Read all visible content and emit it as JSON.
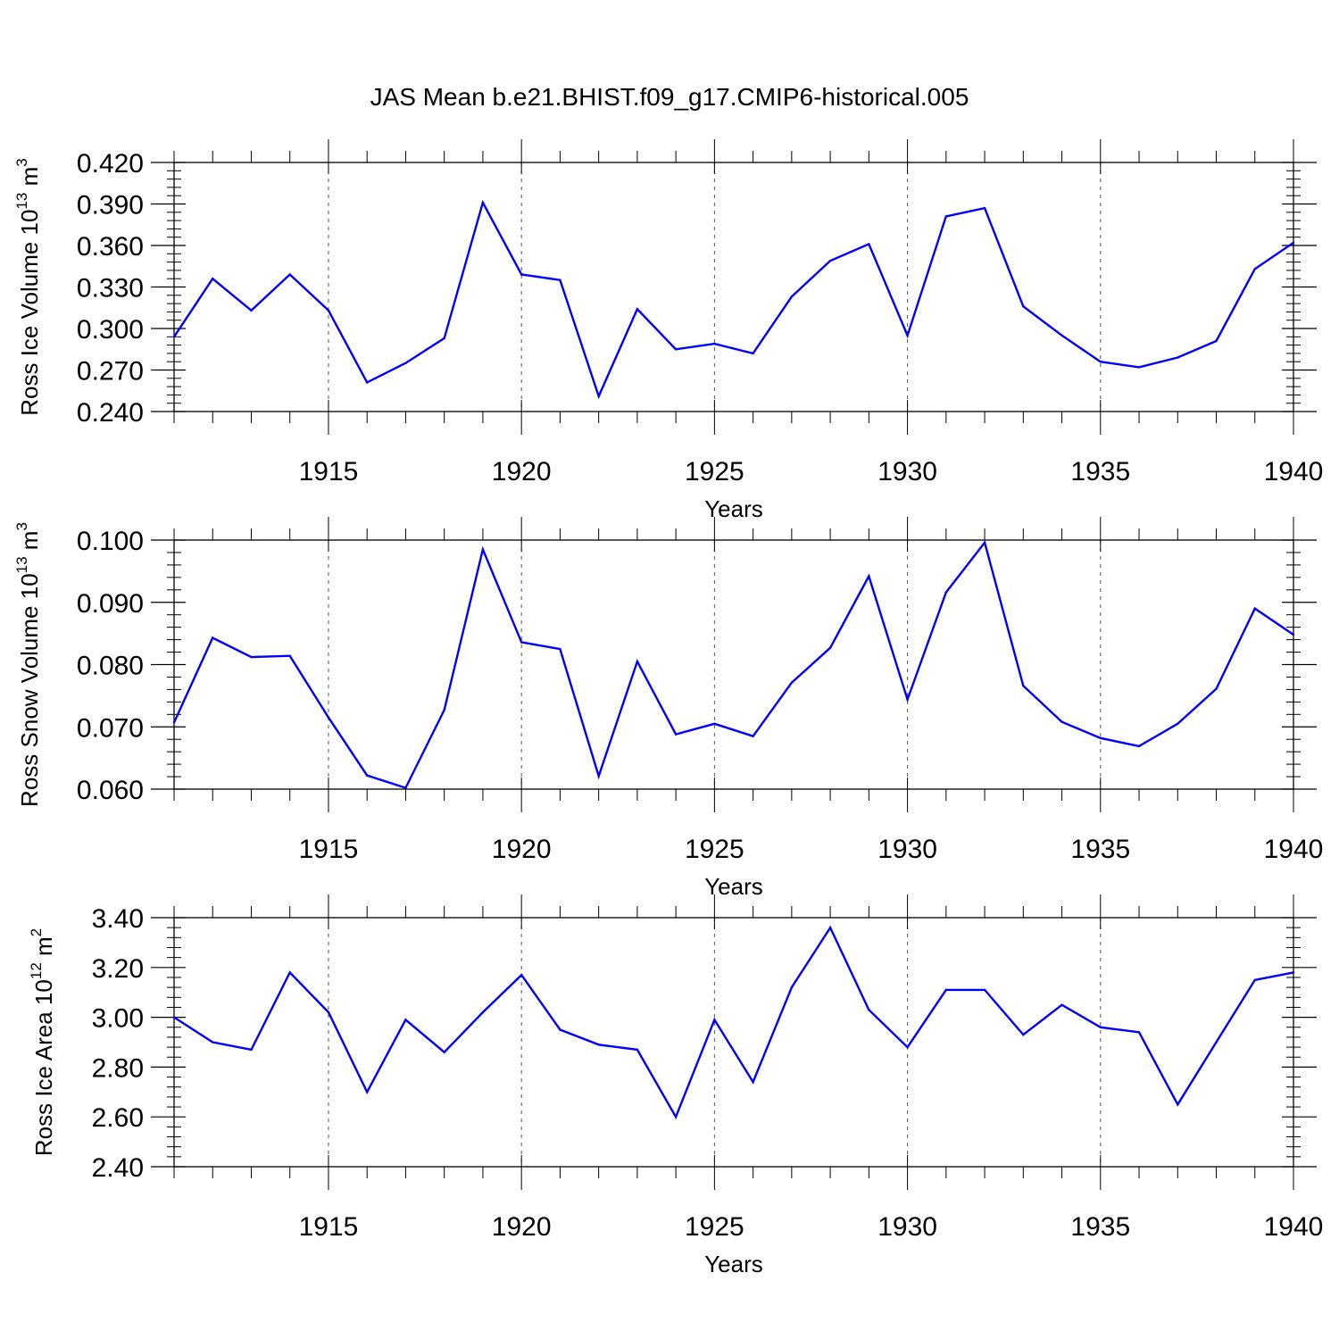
{
  "chart_data": [
    {
      "type": "line",
      "title": "JAS Mean b.e21.BHIST.f09_g17.CMIP6-historical.005",
      "ylabel": {
        "base": "Ross Ice Volume 10",
        "exp": "13",
        "unit": " m",
        "unit_exp": "3"
      },
      "xlabel": "Years",
      "xlim": [
        1911,
        1940
      ],
      "ylim": [
        0.24,
        0.42
      ],
      "yticks": [
        "0.240",
        "0.270",
        "0.300",
        "0.330",
        "0.360",
        "0.390",
        "0.420"
      ],
      "ytick_values": [
        0.24,
        0.27,
        0.3,
        0.33,
        0.36,
        0.39,
        0.42
      ],
      "xticks": [
        1915,
        1920,
        1925,
        1930,
        1935,
        1940
      ],
      "grid_x": [
        1915,
        1920,
        1925,
        1930,
        1935
      ],
      "color": "#0000ff",
      "x": [
        1911,
        1912,
        1913,
        1914,
        1915,
        1916,
        1917,
        1918,
        1919,
        1920,
        1921,
        1922,
        1923,
        1924,
        1925,
        1926,
        1927,
        1928,
        1929,
        1930,
        1931,
        1932,
        1933,
        1934,
        1935,
        1936,
        1937,
        1938,
        1939,
        1940
      ],
      "values": [
        0.294,
        0.336,
        0.313,
        0.339,
        0.313,
        0.261,
        0.275,
        0.293,
        0.391,
        0.339,
        0.335,
        0.251,
        0.314,
        0.285,
        0.289,
        0.282,
        0.323,
        0.349,
        0.361,
        0.295,
        0.381,
        0.387,
        0.316,
        0.295,
        0.276,
        0.272,
        0.279,
        0.291,
        0.343,
        0.362
      ]
    },
    {
      "type": "line",
      "ylabel": {
        "base": "Ross Snow Volume 10",
        "exp": "13",
        "unit": " m",
        "unit_exp": "3"
      },
      "xlabel": "Years",
      "xlim": [
        1911,
        1940
      ],
      "ylim": [
        0.06,
        0.1
      ],
      "yticks": [
        "0.060",
        "0.070",
        "0.080",
        "0.090",
        "0.100"
      ],
      "ytick_values": [
        0.06,
        0.07,
        0.08,
        0.09,
        0.1
      ],
      "xticks": [
        1915,
        1920,
        1925,
        1930,
        1935,
        1940
      ],
      "grid_x": [
        1915,
        1920,
        1925,
        1930,
        1935
      ],
      "color": "#0000ff",
      "x": [
        1911,
        1912,
        1913,
        1914,
        1915,
        1916,
        1917,
        1918,
        1919,
        1920,
        1921,
        1922,
        1923,
        1924,
        1925,
        1926,
        1927,
        1928,
        1929,
        1930,
        1931,
        1932,
        1933,
        1934,
        1935,
        1936,
        1937,
        1938,
        1939,
        1940
      ],
      "values": [
        0.0707,
        0.0843,
        0.0812,
        0.0814,
        0.0715,
        0.0622,
        0.0602,
        0.0727,
        0.0985,
        0.0836,
        0.0825,
        0.0621,
        0.0805,
        0.0688,
        0.0705,
        0.0685,
        0.0771,
        0.0827,
        0.0942,
        0.0744,
        0.0916,
        0.0996,
        0.0766,
        0.0708,
        0.0682,
        0.0669,
        0.0705,
        0.0761,
        0.089,
        0.0848
      ]
    },
    {
      "type": "line",
      "ylabel": {
        "base": "Ross Ice Area 10",
        "exp": "12",
        "unit": " m",
        "unit_exp": "2"
      },
      "xlabel": "Years",
      "xlim": [
        1911,
        1940
      ],
      "ylim": [
        2.4,
        3.4
      ],
      "yticks": [
        "2.40",
        "2.60",
        "2.80",
        "3.00",
        "3.20",
        "3.40"
      ],
      "ytick_values": [
        2.4,
        2.6,
        2.8,
        3.0,
        3.2,
        3.4
      ],
      "xticks": [
        1915,
        1920,
        1925,
        1930,
        1935,
        1940
      ],
      "grid_x": [
        1915,
        1920,
        1925,
        1930,
        1935
      ],
      "color": "#0000ff",
      "x": [
        1911,
        1912,
        1913,
        1914,
        1915,
        1916,
        1917,
        1918,
        1919,
        1920,
        1921,
        1922,
        1923,
        1924,
        1925,
        1926,
        1927,
        1928,
        1929,
        1930,
        1931,
        1932,
        1933,
        1934,
        1935,
        1936,
        1937,
        1938,
        1939,
        1940
      ],
      "values": [
        3.0,
        2.9,
        2.87,
        3.18,
        3.02,
        2.7,
        2.99,
        2.86,
        3.02,
        3.17,
        2.95,
        2.89,
        2.87,
        2.6,
        2.99,
        2.74,
        3.12,
        3.36,
        3.03,
        2.88,
        3.11,
        3.11,
        2.93,
        3.05,
        2.96,
        2.94,
        2.65,
        2.9,
        3.15,
        3.18
      ]
    }
  ]
}
